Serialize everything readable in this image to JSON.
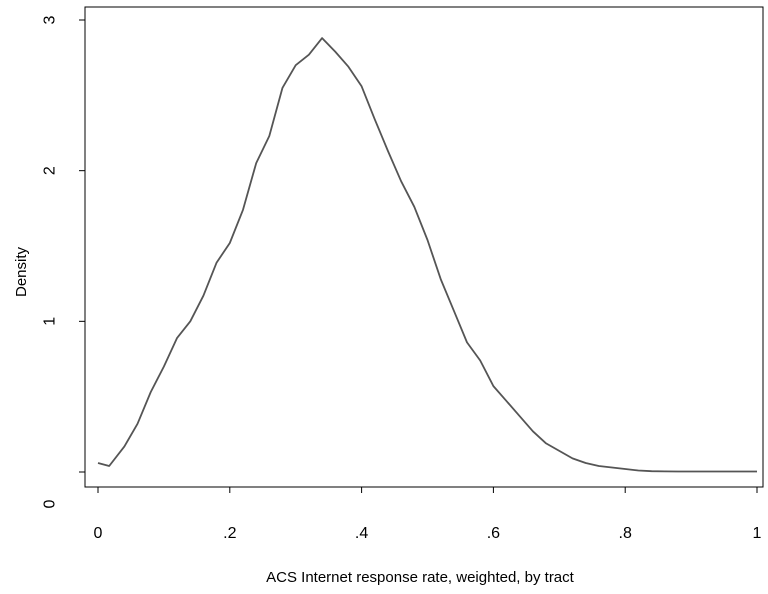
{
  "chart_data": {
    "type": "line",
    "title": "",
    "xlabel": "ACS Internet response rate, weighted, by tract",
    "ylabel": "Density",
    "xlim": [
      0,
      1
    ],
    "ylim": [
      0,
      3
    ],
    "x_ticks": [
      {
        "value": 0,
        "label": "0"
      },
      {
        "value": 0.2,
        "label": ".2"
      },
      {
        "value": 0.4,
        "label": ".4"
      },
      {
        "value": 0.6,
        "label": ".6"
      },
      {
        "value": 0.8,
        "label": ".8"
      },
      {
        "value": 1,
        "label": "1"
      }
    ],
    "y_ticks": [
      {
        "value": 0,
        "label": "0"
      },
      {
        "value": 1,
        "label": "1"
      },
      {
        "value": 2,
        "label": "2"
      },
      {
        "value": 3,
        "label": "3"
      }
    ],
    "grid": false,
    "line_color": "#555555",
    "series": [
      {
        "x": [
          0.0,
          0.017,
          0.04,
          0.06,
          0.08,
          0.1,
          0.12,
          0.14,
          0.16,
          0.18,
          0.2,
          0.22,
          0.24,
          0.26,
          0.28,
          0.3,
          0.32,
          0.34,
          0.36,
          0.38,
          0.4,
          0.42,
          0.44,
          0.46,
          0.48,
          0.5,
          0.52,
          0.54,
          0.56,
          0.58,
          0.6,
          0.62,
          0.64,
          0.66,
          0.68,
          0.7,
          0.72,
          0.74,
          0.76,
          0.78,
          0.8,
          0.82,
          0.84,
          0.86,
          0.88,
          0.9,
          0.92,
          0.94,
          0.96,
          0.98,
          1.0
        ],
        "y": [
          0.06,
          0.04,
          0.17,
          0.32,
          0.53,
          0.7,
          0.89,
          1.0,
          1.17,
          1.39,
          1.52,
          1.74,
          2.05,
          2.23,
          2.55,
          2.7,
          2.77,
          2.88,
          2.79,
          2.69,
          2.56,
          2.34,
          2.13,
          1.93,
          1.76,
          1.54,
          1.28,
          1.07,
          0.86,
          0.74,
          0.57,
          0.47,
          0.37,
          0.27,
          0.19,
          0.14,
          0.09,
          0.06,
          0.04,
          0.03,
          0.02,
          0.01,
          0.005,
          0.004,
          0.003,
          0.003,
          0.003,
          0.003,
          0.003,
          0.003,
          0.003
        ]
      }
    ]
  }
}
